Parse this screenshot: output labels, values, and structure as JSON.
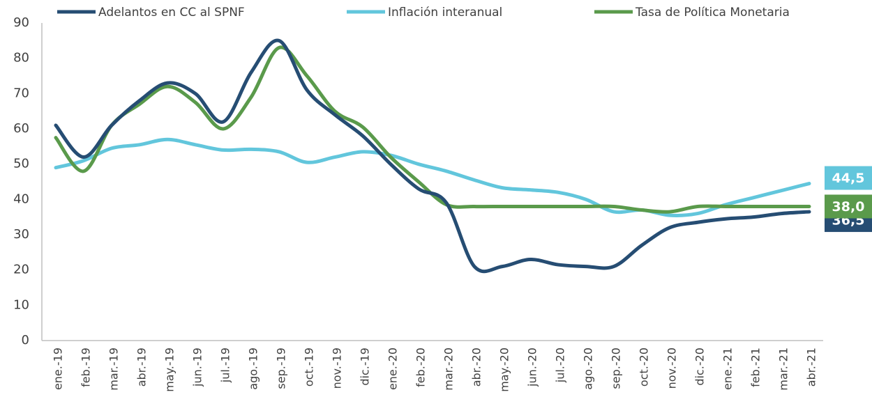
{
  "chart_data": {
    "type": "line",
    "categories": [
      "ene.-19",
      "feb.-19",
      "mar.-19",
      "abr.-19",
      "may.-19",
      "jun.-19",
      "jul.-19",
      "ago.-19",
      "sep.-19",
      "oct.-19",
      "nov.-19",
      "dic.-19",
      "ene.-20",
      "feb.-20",
      "mar.-20",
      "abr.-20",
      "may.-20",
      "jun.-20",
      "jul.-20",
      "ago.-20",
      "sep.-20",
      "oct.-20",
      "nov.-20",
      "dic.-20",
      "ene.-21",
      "feb.-21",
      "mar.-21",
      "abr.-21"
    ],
    "series": [
      {
        "name": "Adelantos en CC al SPNF",
        "color": "#264d73",
        "values": [
          61,
          52,
          61,
          68,
          73,
          70,
          62,
          76,
          85,
          71,
          64,
          58,
          50,
          43,
          39,
          21,
          21,
          23,
          21.5,
          21,
          21,
          27,
          32,
          33.5,
          34.5,
          35,
          36,
          36.5
        ],
        "value_labels": [
          null,
          null,
          null,
          null,
          null,
          null,
          null,
          null,
          null,
          null,
          null,
          null,
          null,
          null,
          null,
          null,
          null,
          null,
          null,
          null,
          null,
          null,
          null,
          null,
          null,
          null,
          null,
          "36,5"
        ]
      },
      {
        "name": "Inflación interanual",
        "color": "#62c6dc",
        "values": [
          49,
          51,
          54.5,
          55.5,
          57,
          55.5,
          54,
          54.2,
          53.5,
          50.5,
          52,
          53.5,
          52.5,
          50,
          48,
          45.5,
          43.3,
          42.7,
          42,
          40,
          36.5,
          37,
          35.5,
          36,
          38.5,
          40.5,
          42.5,
          44.5
        ],
        "value_labels": [
          null,
          null,
          null,
          null,
          null,
          null,
          null,
          null,
          null,
          null,
          null,
          null,
          null,
          null,
          null,
          null,
          null,
          null,
          null,
          null,
          null,
          null,
          null,
          null,
          null,
          null,
          null,
          "44,5"
        ]
      },
      {
        "name": "Tasa de Política Monetaria",
        "color": "#5a9a4b",
        "values": [
          57.5,
          48,
          61,
          67,
          72,
          67.5,
          60,
          69,
          83,
          75,
          65,
          60.5,
          52,
          45,
          38.5,
          38,
          38,
          38,
          38,
          38,
          38,
          37,
          36.5,
          38,
          38,
          38,
          38,
          38
        ],
        "value_labels": [
          null,
          null,
          null,
          null,
          null,
          null,
          null,
          null,
          null,
          null,
          null,
          null,
          null,
          null,
          null,
          null,
          null,
          null,
          null,
          null,
          null,
          null,
          null,
          null,
          null,
          null,
          null,
          "38,0"
        ]
      }
    ],
    "ylim": [
      0,
      90
    ],
    "yticks": [
      0,
      10,
      20,
      30,
      40,
      50,
      60,
      70,
      80,
      90
    ],
    "legend": "top"
  }
}
